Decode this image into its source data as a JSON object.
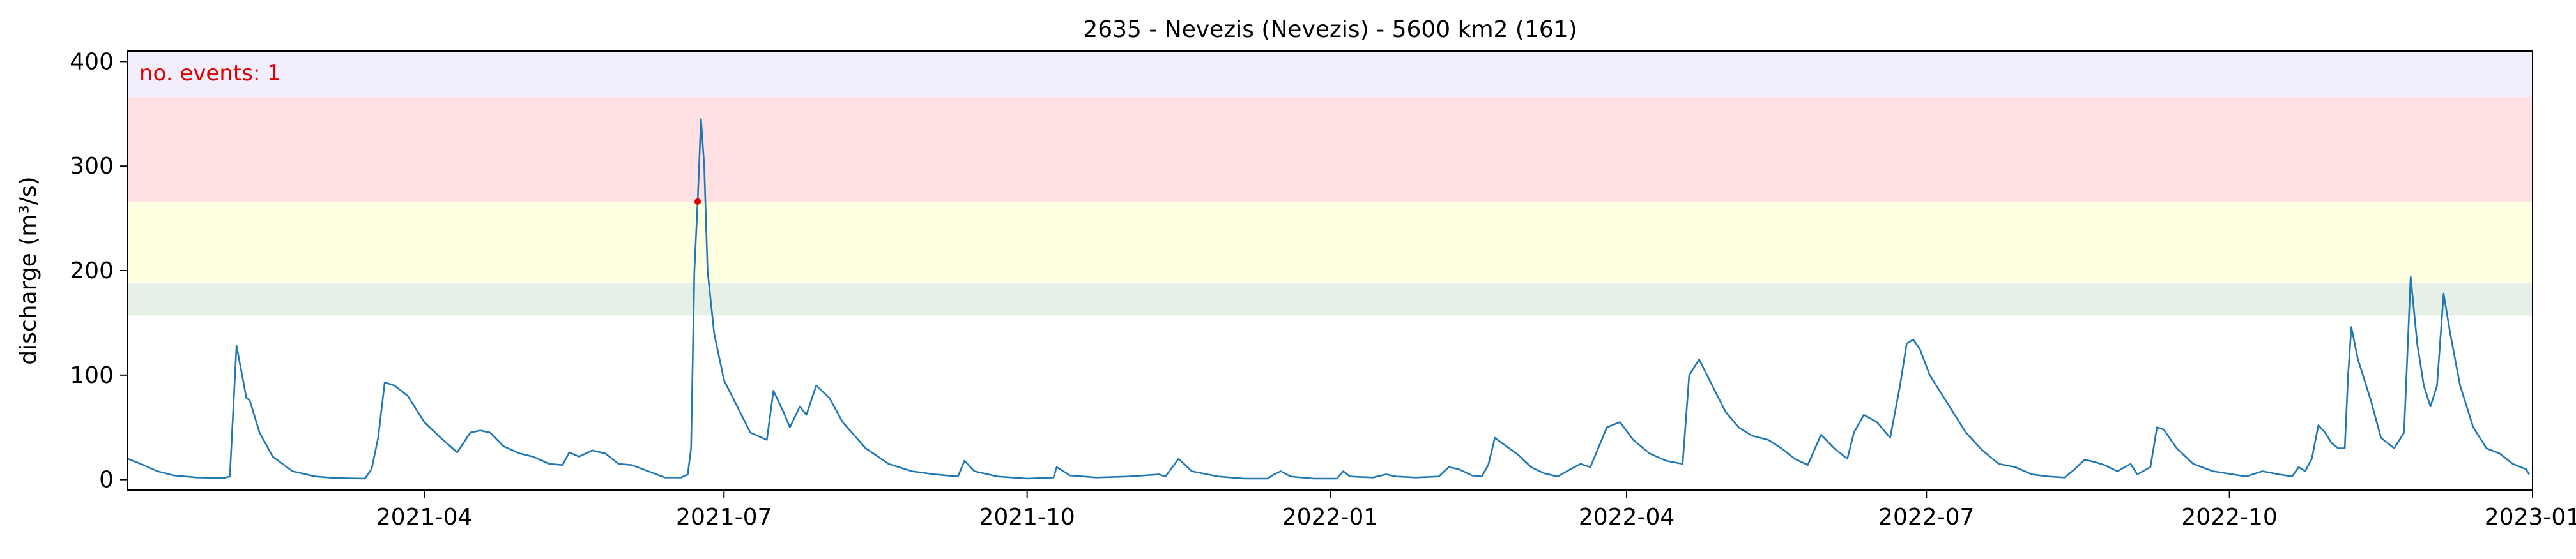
{
  "chart_data": {
    "type": "line",
    "title": "2635 - Nevezis (Nevezis) - 5600 km2 (161)",
    "xlabel": "",
    "ylabel": "discharge (m³/s)",
    "x_axis": {
      "type": "date",
      "range": [
        "2021-01-01",
        "2023-01-01"
      ],
      "ticks": [
        "2021-04",
        "2021-07",
        "2021-10",
        "2022-01",
        "2022-04",
        "2022-07",
        "2022-10",
        "2023-01"
      ]
    },
    "ylim": [
      -10,
      410
    ],
    "yticks": [
      0,
      100,
      200,
      300,
      400
    ],
    "grid": false,
    "annotation": {
      "text": "no. events: 1",
      "color": "#e00000"
    },
    "threshold_bands": [
      {
        "from": 157,
        "to": 188,
        "color": "#e6f0e6"
      },
      {
        "from": 188,
        "to": 266,
        "color": "#ffffe2"
      },
      {
        "from": 266,
        "to": 366,
        "color": "#ffe1e3"
      },
      {
        "from": 366,
        "to": 410,
        "color": "#f2eefb"
      }
    ],
    "series": [
      {
        "color": "#1f77b4",
        "points": [
          [
            "2021-01-01",
            20
          ],
          [
            "2021-01-05",
            15
          ],
          [
            "2021-01-10",
            8
          ],
          [
            "2021-01-15",
            4
          ],
          [
            "2021-01-22",
            2
          ],
          [
            "2021-01-30",
            1.5
          ],
          [
            "2021-02-01",
            3
          ],
          [
            "2021-02-03",
            128
          ],
          [
            "2021-02-05",
            95
          ],
          [
            "2021-02-06",
            78
          ],
          [
            "2021-02-07",
            76
          ],
          [
            "2021-02-10",
            45
          ],
          [
            "2021-02-14",
            22
          ],
          [
            "2021-02-20",
            8
          ],
          [
            "2021-02-27",
            3
          ],
          [
            "2021-03-05",
            1.5
          ],
          [
            "2021-03-14",
            1
          ],
          [
            "2021-03-16",
            10
          ],
          [
            "2021-03-18",
            40
          ],
          [
            "2021-03-20",
            93
          ],
          [
            "2021-03-23",
            90
          ],
          [
            "2021-03-27",
            80
          ],
          [
            "2021-04-01",
            55
          ],
          [
            "2021-04-06",
            40
          ],
          [
            "2021-04-11",
            26
          ],
          [
            "2021-04-15",
            45
          ],
          [
            "2021-04-18",
            47
          ],
          [
            "2021-04-21",
            45
          ],
          [
            "2021-04-25",
            32
          ],
          [
            "2021-04-30",
            25
          ],
          [
            "2021-05-04",
            22
          ],
          [
            "2021-05-09",
            15
          ],
          [
            "2021-05-13",
            14
          ],
          [
            "2021-05-15",
            26
          ],
          [
            "2021-05-18",
            22
          ],
          [
            "2021-05-22",
            28
          ],
          [
            "2021-05-26",
            25
          ],
          [
            "2021-05-30",
            15
          ],
          [
            "2021-06-03",
            14
          ],
          [
            "2021-06-08",
            8
          ],
          [
            "2021-06-13",
            2
          ],
          [
            "2021-06-18",
            2
          ],
          [
            "2021-06-20",
            5
          ],
          [
            "2021-06-21",
            30
          ],
          [
            "2021-06-22",
            200
          ],
          [
            "2021-06-23",
            266
          ],
          [
            "2021-06-24",
            345
          ],
          [
            "2021-06-25",
            300
          ],
          [
            "2021-06-26",
            200
          ],
          [
            "2021-06-28",
            140
          ],
          [
            "2021-07-01",
            95
          ],
          [
            "2021-07-05",
            70
          ],
          [
            "2021-07-09",
            45
          ],
          [
            "2021-07-14",
            38
          ],
          [
            "2021-07-16",
            85
          ],
          [
            "2021-07-19",
            65
          ],
          [
            "2021-07-21",
            50
          ],
          [
            "2021-07-24",
            70
          ],
          [
            "2021-07-26",
            62
          ],
          [
            "2021-07-29",
            90
          ],
          [
            "2021-08-02",
            78
          ],
          [
            "2021-08-06",
            55
          ],
          [
            "2021-08-13",
            30
          ],
          [
            "2021-08-20",
            15
          ],
          [
            "2021-08-27",
            8
          ],
          [
            "2021-09-03",
            5
          ],
          [
            "2021-09-10",
            3
          ],
          [
            "2021-09-12",
            18
          ],
          [
            "2021-09-15",
            8
          ],
          [
            "2021-09-22",
            3
          ],
          [
            "2021-10-01",
            1
          ],
          [
            "2021-10-09",
            2
          ],
          [
            "2021-10-10",
            12
          ],
          [
            "2021-10-14",
            4
          ],
          [
            "2021-10-22",
            2
          ],
          [
            "2021-11-01",
            3
          ],
          [
            "2021-11-10",
            5
          ],
          [
            "2021-11-12",
            3
          ],
          [
            "2021-11-16",
            20
          ],
          [
            "2021-11-20",
            8
          ],
          [
            "2021-11-28",
            3
          ],
          [
            "2021-12-06",
            1
          ],
          [
            "2021-12-13",
            1
          ],
          [
            "2021-12-15",
            5
          ],
          [
            "2021-12-17",
            8
          ],
          [
            "2021-12-20",
            3
          ],
          [
            "2021-12-27",
            1
          ],
          [
            "2022-01-03",
            1
          ],
          [
            "2022-01-05",
            8
          ],
          [
            "2022-01-07",
            3
          ],
          [
            "2022-01-14",
            2
          ],
          [
            "2022-01-18",
            5
          ],
          [
            "2022-01-21",
            3
          ],
          [
            "2022-01-27",
            2
          ],
          [
            "2022-02-03",
            3
          ],
          [
            "2022-02-06",
            12
          ],
          [
            "2022-02-09",
            10
          ],
          [
            "2022-02-13",
            4
          ],
          [
            "2022-02-16",
            3
          ],
          [
            "2022-02-18",
            14
          ],
          [
            "2022-02-20",
            40
          ],
          [
            "2022-02-23",
            33
          ],
          [
            "2022-02-27",
            24
          ],
          [
            "2022-03-03",
            12
          ],
          [
            "2022-03-07",
            6
          ],
          [
            "2022-03-11",
            3
          ],
          [
            "2022-03-15",
            10
          ],
          [
            "2022-03-18",
            15
          ],
          [
            "2022-03-21",
            12
          ],
          [
            "2022-03-26",
            50
          ],
          [
            "2022-03-30",
            55
          ],
          [
            "2022-04-03",
            38
          ],
          [
            "2022-04-08",
            25
          ],
          [
            "2022-04-13",
            18
          ],
          [
            "2022-04-18",
            15
          ],
          [
            "2022-04-20",
            100
          ],
          [
            "2022-04-23",
            115
          ],
          [
            "2022-04-27",
            90
          ],
          [
            "2022-05-01",
            65
          ],
          [
            "2022-05-05",
            50
          ],
          [
            "2022-05-09",
            42
          ],
          [
            "2022-05-14",
            38
          ],
          [
            "2022-05-18",
            30
          ],
          [
            "2022-05-22",
            20
          ],
          [
            "2022-05-26",
            14
          ],
          [
            "2022-05-30",
            43
          ],
          [
            "2022-06-03",
            30
          ],
          [
            "2022-06-07",
            20
          ],
          [
            "2022-06-09",
            45
          ],
          [
            "2022-06-12",
            62
          ],
          [
            "2022-06-16",
            55
          ],
          [
            "2022-06-20",
            40
          ],
          [
            "2022-06-23",
            90
          ],
          [
            "2022-06-25",
            130
          ],
          [
            "2022-06-27",
            134
          ],
          [
            "2022-06-29",
            125
          ],
          [
            "2022-07-02",
            100
          ],
          [
            "2022-07-08",
            70
          ],
          [
            "2022-07-13",
            45
          ],
          [
            "2022-07-18",
            28
          ],
          [
            "2022-07-23",
            15
          ],
          [
            "2022-07-28",
            12
          ],
          [
            "2022-08-02",
            5
          ],
          [
            "2022-08-07",
            3
          ],
          [
            "2022-08-12",
            2
          ],
          [
            "2022-08-15",
            10
          ],
          [
            "2022-08-18",
            19
          ],
          [
            "2022-08-21",
            17
          ],
          [
            "2022-08-24",
            14
          ],
          [
            "2022-08-28",
            8
          ],
          [
            "2022-09-01",
            15
          ],
          [
            "2022-09-03",
            5
          ],
          [
            "2022-09-07",
            12
          ],
          [
            "2022-09-09",
            50
          ],
          [
            "2022-09-11",
            48
          ],
          [
            "2022-09-15",
            30
          ],
          [
            "2022-09-20",
            15
          ],
          [
            "2022-09-26",
            8
          ],
          [
            "2022-10-02",
            5
          ],
          [
            "2022-10-06",
            3
          ],
          [
            "2022-10-11",
            8
          ],
          [
            "2022-10-16",
            5
          ],
          [
            "2022-10-20",
            3
          ],
          [
            "2022-10-22",
            12
          ],
          [
            "2022-10-24",
            8
          ],
          [
            "2022-10-26",
            20
          ],
          [
            "2022-10-28",
            52
          ],
          [
            "2022-10-30",
            45
          ],
          [
            "2022-11-01",
            35
          ],
          [
            "2022-11-03",
            30
          ],
          [
            "2022-11-05",
            30
          ],
          [
            "2022-11-06",
            100
          ],
          [
            "2022-11-07",
            146
          ],
          [
            "2022-11-09",
            115
          ],
          [
            "2022-11-13",
            75
          ],
          [
            "2022-11-16",
            40
          ],
          [
            "2022-11-20",
            30
          ],
          [
            "2022-11-23",
            45
          ],
          [
            "2022-11-25",
            194
          ],
          [
            "2022-11-27",
            130
          ],
          [
            "2022-11-29",
            90
          ],
          [
            "2022-12-01",
            70
          ],
          [
            "2022-12-03",
            90
          ],
          [
            "2022-12-05",
            178
          ],
          [
            "2022-12-07",
            140
          ],
          [
            "2022-12-10",
            90
          ],
          [
            "2022-12-14",
            50
          ],
          [
            "2022-12-18",
            30
          ],
          [
            "2022-12-22",
            25
          ],
          [
            "2022-12-26",
            15
          ],
          [
            "2022-12-30",
            10
          ],
          [
            "2022-12-31",
            5
          ]
        ]
      }
    ],
    "event_markers": [
      {
        "x": "2021-06-23",
        "y": 266,
        "color": "#e00000"
      }
    ]
  }
}
